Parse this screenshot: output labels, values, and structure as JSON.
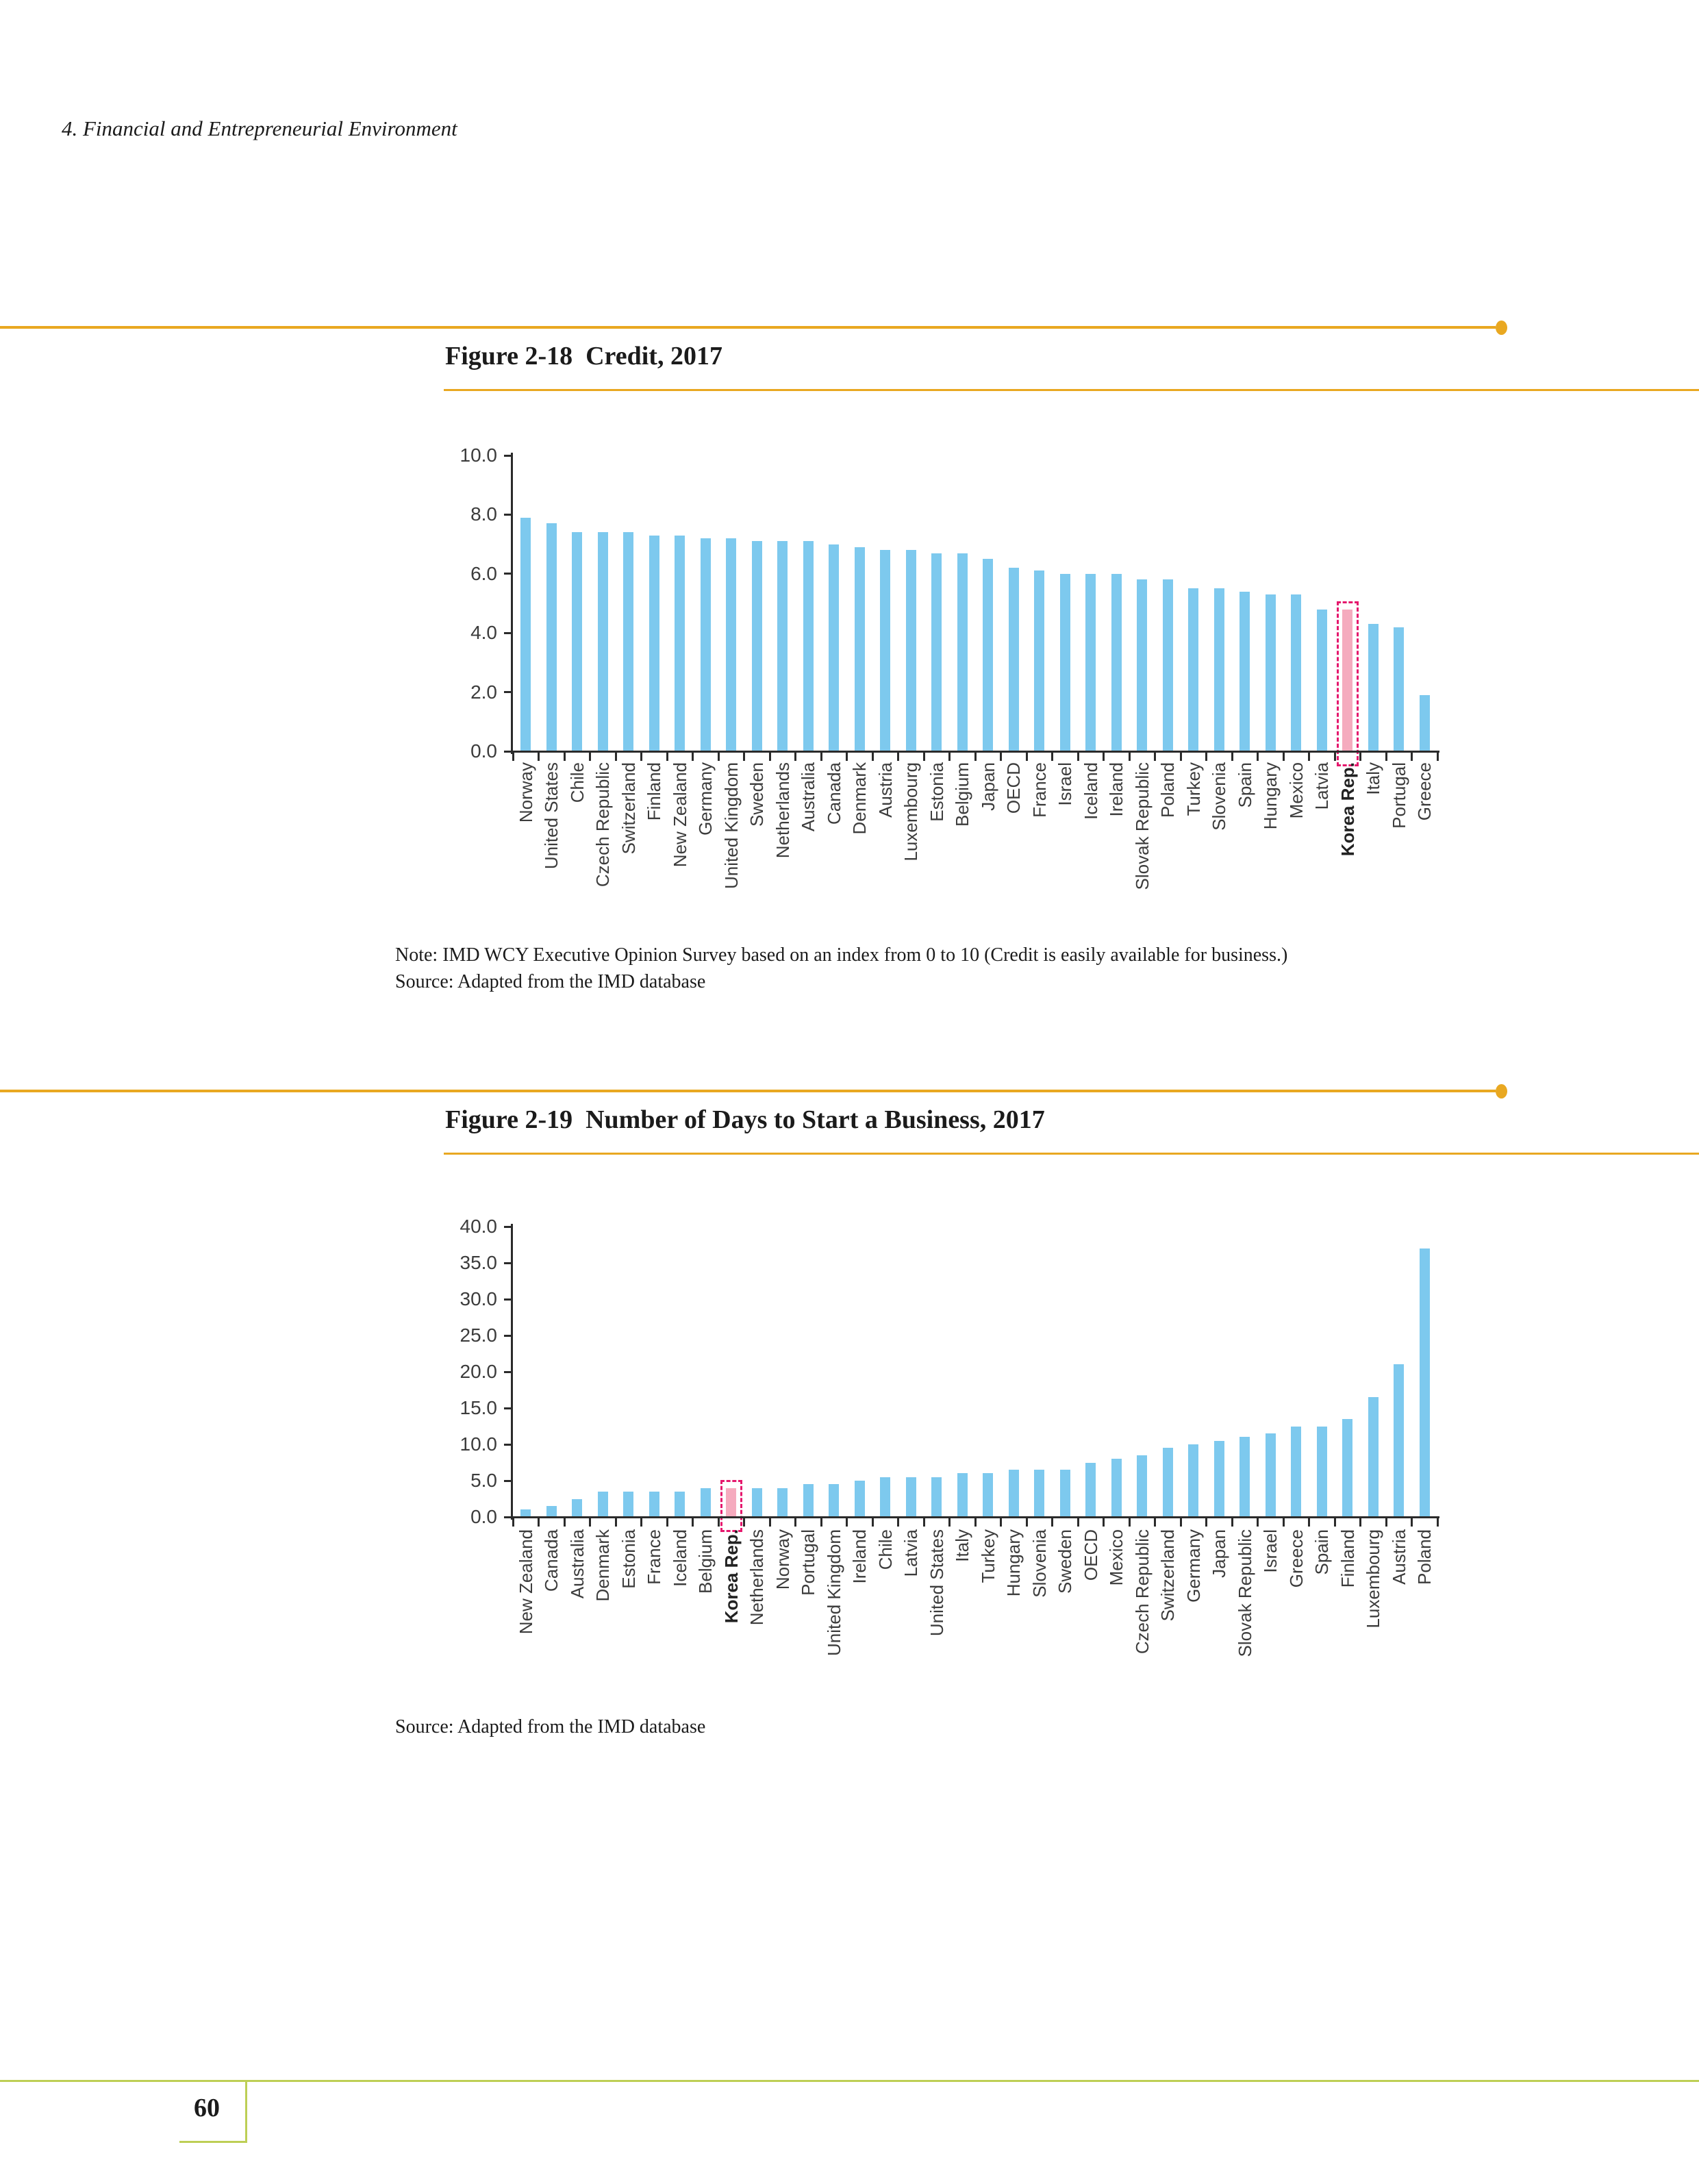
{
  "page": {
    "header": "4. Financial and Entrepreneurial Environment",
    "page_number": "60"
  },
  "figure1": {
    "title": "Figure 2-18  Credit, 2017",
    "note": "Note: IMD WCY Executive Opinion Survey based on an index from 0 to 10 (Credit is easily available for business.)",
    "source": "Source: Adapted from the IMD database"
  },
  "figure2": {
    "title": "Figure 2-19  Number of Days to Start a Business, 2017",
    "source": "Source: Adapted from the IMD database"
  },
  "colors": {
    "bar_blue": "#7DC9EE",
    "bar_highlight_pink": "#F5ABBE",
    "highlight_outline": "#E5186D",
    "rule_gold": "#E9A821",
    "rule_green": "#BDCF55",
    "axis_black": "#2B2B2B",
    "label_gray": "#3C3C3C"
  },
  "chart_data": [
    {
      "figure": "Figure 2-18",
      "type": "bar",
      "title": "Credit, 2017",
      "categories": [
        "Norway",
        "United States",
        "Chile",
        "Czech Republic",
        "Switzerland",
        "Finland",
        "New Zealand",
        "Germany",
        "United Kingdom",
        "Sweden",
        "Netherlands",
        "Australia",
        "Canada",
        "Denmark",
        "Austria",
        "Luxembourg",
        "Estonia",
        "Belgium",
        "Japan",
        "OECD",
        "France",
        "Israel",
        "Iceland",
        "Ireland",
        "Slovak Republic",
        "Poland",
        "Turkey",
        "Slovenia",
        "Spain",
        "Hungary",
        "Mexico",
        "Latvia",
        "Korea Rep.",
        "Italy",
        "Portugal",
        "Greece"
      ],
      "values": [
        7.9,
        7.7,
        7.4,
        7.4,
        7.4,
        7.3,
        7.3,
        7.2,
        7.2,
        7.1,
        7.1,
        7.1,
        7.0,
        6.9,
        6.8,
        6.8,
        6.7,
        6.7,
        6.5,
        6.2,
        6.1,
        6.0,
        6.0,
        6.0,
        5.8,
        5.8,
        5.5,
        5.5,
        5.4,
        5.3,
        5.3,
        4.8,
        4.8,
        4.3,
        4.2,
        1.9
      ],
      "highlight_category": "Korea Rep.",
      "xlabel": "",
      "ylabel": "",
      "ylim": [
        0,
        10
      ],
      "ytick_step": 2,
      "ytick_labels": [
        "0.0",
        "2.0",
        "4.0",
        "6.0",
        "8.0",
        "10.0"
      ],
      "grid": false,
      "legend": false
    },
    {
      "figure": "Figure 2-19",
      "type": "bar",
      "title": "Number of Days to Start a Business, 2017",
      "categories": [
        "New Zealand",
        "Canada",
        "Australia",
        "Denmark",
        "Estonia",
        "France",
        "Iceland",
        "Belgium",
        "Korea Rep.",
        "Netherlands",
        "Norway",
        "Portugal",
        "United Kingdom",
        "Ireland",
        "Chile",
        "Latvia",
        "United States",
        "Italy",
        "Turkey",
        "Hungary",
        "Slovenia",
        "Sweden",
        "OECD",
        "Mexico",
        "Czech Republic",
        "Switzerland",
        "Germany",
        "Japan",
        "Slovak Republic",
        "Israel",
        "Greece",
        "Spain",
        "Finland",
        "Luxembourg",
        "Austria",
        "Poland"
      ],
      "values": [
        1.0,
        1.5,
        2.5,
        3.5,
        3.5,
        3.5,
        3.5,
        4.0,
        4.0,
        4.0,
        4.0,
        4.5,
        4.5,
        5.0,
        5.5,
        5.5,
        5.5,
        6.0,
        6.0,
        6.5,
        6.5,
        6.5,
        7.5,
        8.0,
        8.5,
        9.5,
        10.0,
        10.5,
        11.0,
        11.5,
        12.5,
        12.5,
        13.5,
        16.5,
        21.0,
        37.0
      ],
      "highlight_category": "Korea Rep.",
      "xlabel": "",
      "ylabel": "",
      "ylim": [
        0,
        40
      ],
      "ytick_step": 5,
      "ytick_labels": [
        "0.0",
        "5.0",
        "10.0",
        "15.0",
        "20.0",
        "25.0",
        "30.0",
        "35.0",
        "40.0"
      ],
      "grid": false,
      "legend": false
    }
  ]
}
